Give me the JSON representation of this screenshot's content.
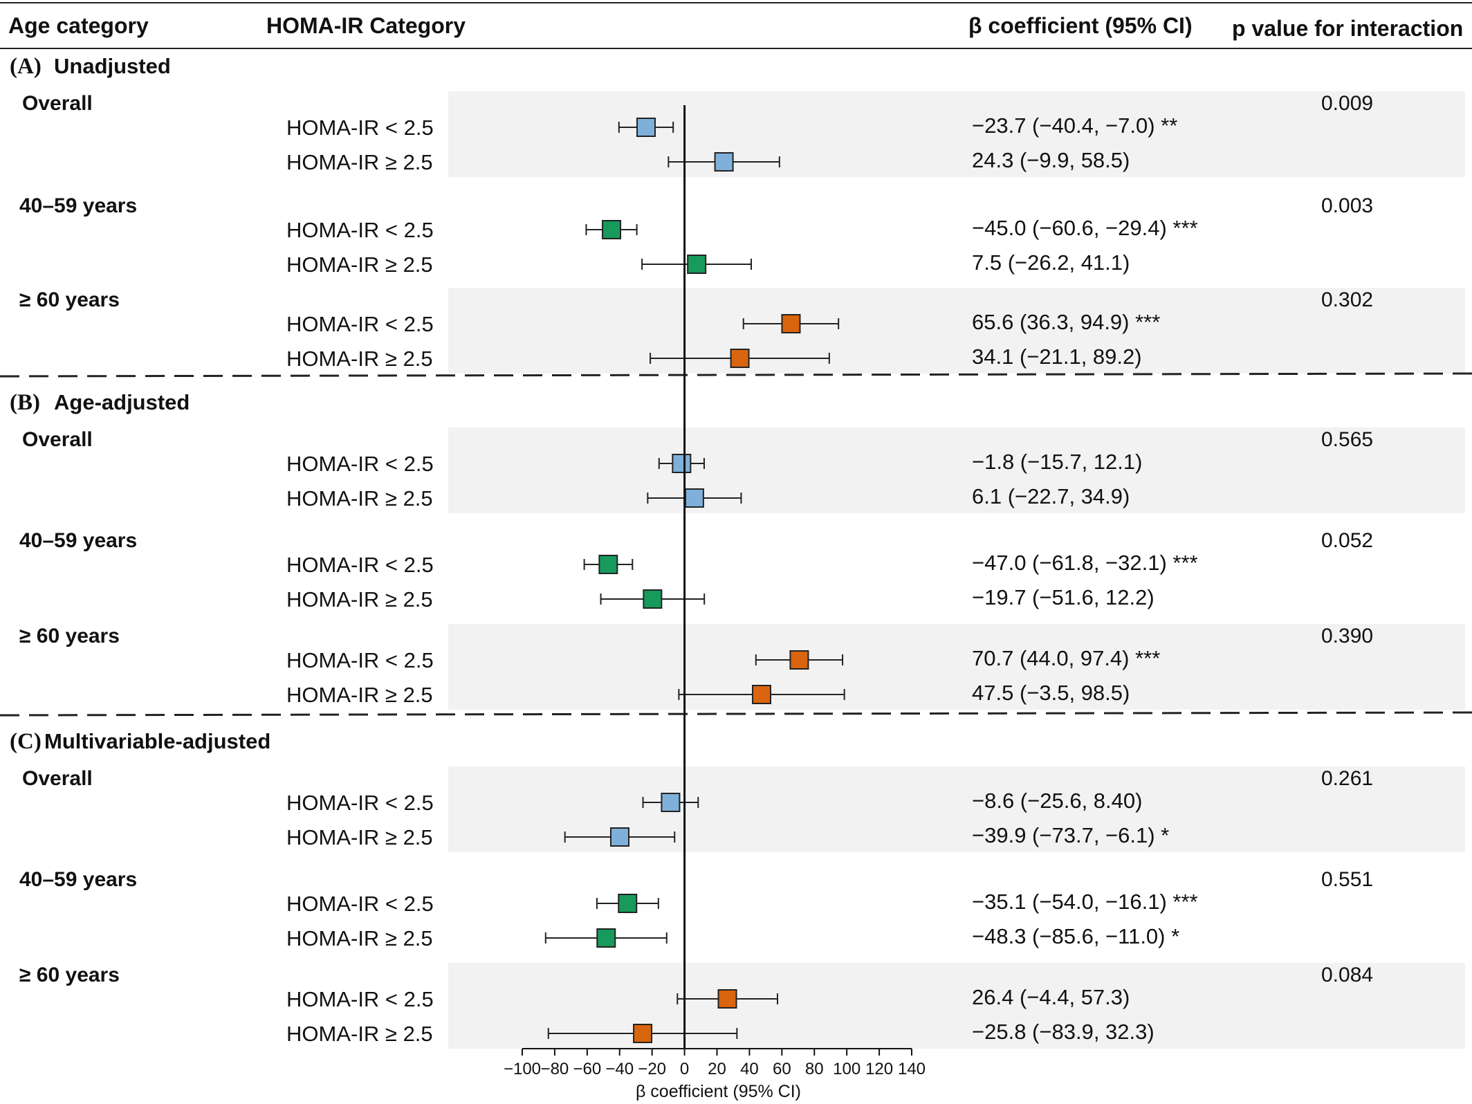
{
  "header": {
    "age_category": "Age category",
    "homa_category": "HOMA-IR Category",
    "beta": "β coefficient (95% CI)",
    "p_value": "p value for interaction"
  },
  "colors": {
    "overall": "#7fb0da",
    "age_40_59": "#179a5c",
    "age_60_plus": "#d9650f",
    "band": "#f2f2f2"
  },
  "chart_data": {
    "type": "forest",
    "xlabel": "β coefficient (95% CI)",
    "xlim": [
      -100,
      140
    ],
    "xticks": [
      -100,
      -80,
      -60,
      -40,
      -20,
      0,
      20,
      40,
      60,
      80,
      100,
      120,
      140
    ],
    "xtick_labels": [
      "−100",
      "−80",
      "−60",
      "−40",
      "−20",
      "0",
      "20",
      "40",
      "60",
      "80",
      "100",
      "120",
      "140"
    ],
    "sections": [
      {
        "title": "Unadjusted",
        "letter": "(A)",
        "groups": [
          {
            "name": "Overall",
            "color_key": "overall",
            "p": "0.009",
            "rows": [
              {
                "label": "HOMA-IR < 2.5",
                "est": -23.7,
                "lo": -40.4,
                "hi": -7.0,
                "text": "−23.7 (−40.4, −7.0) **"
              },
              {
                "label": "HOMA-IR ≥ 2.5",
                "est": 24.3,
                "lo": -9.9,
                "hi": 58.5,
                "text": "24.3 (−9.9, 58.5)"
              }
            ]
          },
          {
            "name": "40–59 years",
            "color_key": "age_40_59",
            "p": "0.003",
            "rows": [
              {
                "label": "HOMA-IR < 2.5",
                "est": -45.0,
                "lo": -60.6,
                "hi": -29.4,
                "text": "−45.0 (−60.6, −29.4) ***"
              },
              {
                "label": "HOMA-IR ≥ 2.5",
                "est": 7.5,
                "lo": -26.2,
                "hi": 41.1,
                "text": "7.5 (−26.2, 41.1)"
              }
            ]
          },
          {
            "name": "≥ 60 years",
            "color_key": "age_60_plus",
            "p": "0.302",
            "rows": [
              {
                "label": "HOMA-IR < 2.5",
                "est": 65.6,
                "lo": 36.3,
                "hi": 94.9,
                "text": "65.6 (36.3, 94.9) ***"
              },
              {
                "label": "HOMA-IR ≥ 2.5",
                "est": 34.1,
                "lo": -21.1,
                "hi": 89.2,
                "text": "34.1 (−21.1, 89.2)"
              }
            ]
          }
        ]
      },
      {
        "title": "Age-adjusted",
        "letter": "(B)",
        "groups": [
          {
            "name": "Overall",
            "color_key": "overall",
            "p": "0.565",
            "rows": [
              {
                "label": "HOMA-IR < 2.5",
                "est": -1.8,
                "lo": -15.7,
                "hi": 12.1,
                "text": "−1.8 (−15.7, 12.1)"
              },
              {
                "label": "HOMA-IR ≥ 2.5",
                "est": 6.1,
                "lo": -22.7,
                "hi": 34.9,
                "text": "6.1 (−22.7, 34.9)"
              }
            ]
          },
          {
            "name": "40–59 years",
            "color_key": "age_40_59",
            "p": "0.052",
            "rows": [
              {
                "label": "HOMA-IR < 2.5",
                "est": -47.0,
                "lo": -61.8,
                "hi": -32.1,
                "text": "−47.0 (−61.8, −32.1) ***"
              },
              {
                "label": "HOMA-IR ≥ 2.5",
                "est": -19.7,
                "lo": -51.6,
                "hi": 12.2,
                "text": "−19.7 (−51.6, 12.2)"
              }
            ]
          },
          {
            "name": "≥ 60 years",
            "color_key": "age_60_plus",
            "p": "0.390",
            "rows": [
              {
                "label": "HOMA-IR < 2.5",
                "est": 70.7,
                "lo": 44.0,
                "hi": 97.4,
                "text": "70.7 (44.0, 97.4) ***"
              },
              {
                "label": "HOMA-IR ≥ 2.5",
                "est": 47.5,
                "lo": -3.5,
                "hi": 98.5,
                "text": "47.5 (−3.5, 98.5)"
              }
            ]
          }
        ]
      },
      {
        "title": "Multivariable-adjusted",
        "letter": "(C)",
        "groups": [
          {
            "name": "Overall",
            "color_key": "overall",
            "p": "0.261",
            "rows": [
              {
                "label": "HOMA-IR < 2.5",
                "est": -8.6,
                "lo": -25.6,
                "hi": 8.4,
                "text": "−8.6 (−25.6, 8.40)"
              },
              {
                "label": "HOMA-IR ≥ 2.5",
                "est": -39.9,
                "lo": -73.7,
                "hi": -6.1,
                "text": "−39.9 (−73.7, −6.1) *"
              }
            ]
          },
          {
            "name": "40–59 years",
            "color_key": "age_40_59",
            "p": "0.551",
            "rows": [
              {
                "label": "HOMA-IR < 2.5",
                "est": -35.1,
                "lo": -54.0,
                "hi": -16.1,
                "text": "−35.1 (−54.0, −16.1) ***"
              },
              {
                "label": "HOMA-IR ≥ 2.5",
                "est": -48.3,
                "lo": -85.6,
                "hi": -11.0,
                "text": "−48.3 (−85.6, −11.0) *"
              }
            ]
          },
          {
            "name": "≥ 60 years",
            "color_key": "age_60_plus",
            "p": "0.084",
            "rows": [
              {
                "label": "HOMA-IR < 2.5",
                "est": 26.4,
                "lo": -4.4,
                "hi": 57.3,
                "text": "26.4 (−4.4, 57.3)"
              },
              {
                "label": "HOMA-IR ≥ 2.5",
                "est": -25.8,
                "lo": -83.9,
                "hi": 32.3,
                "text": "−25.8 (−83.9, 32.3)"
              }
            ]
          }
        ]
      }
    ]
  }
}
